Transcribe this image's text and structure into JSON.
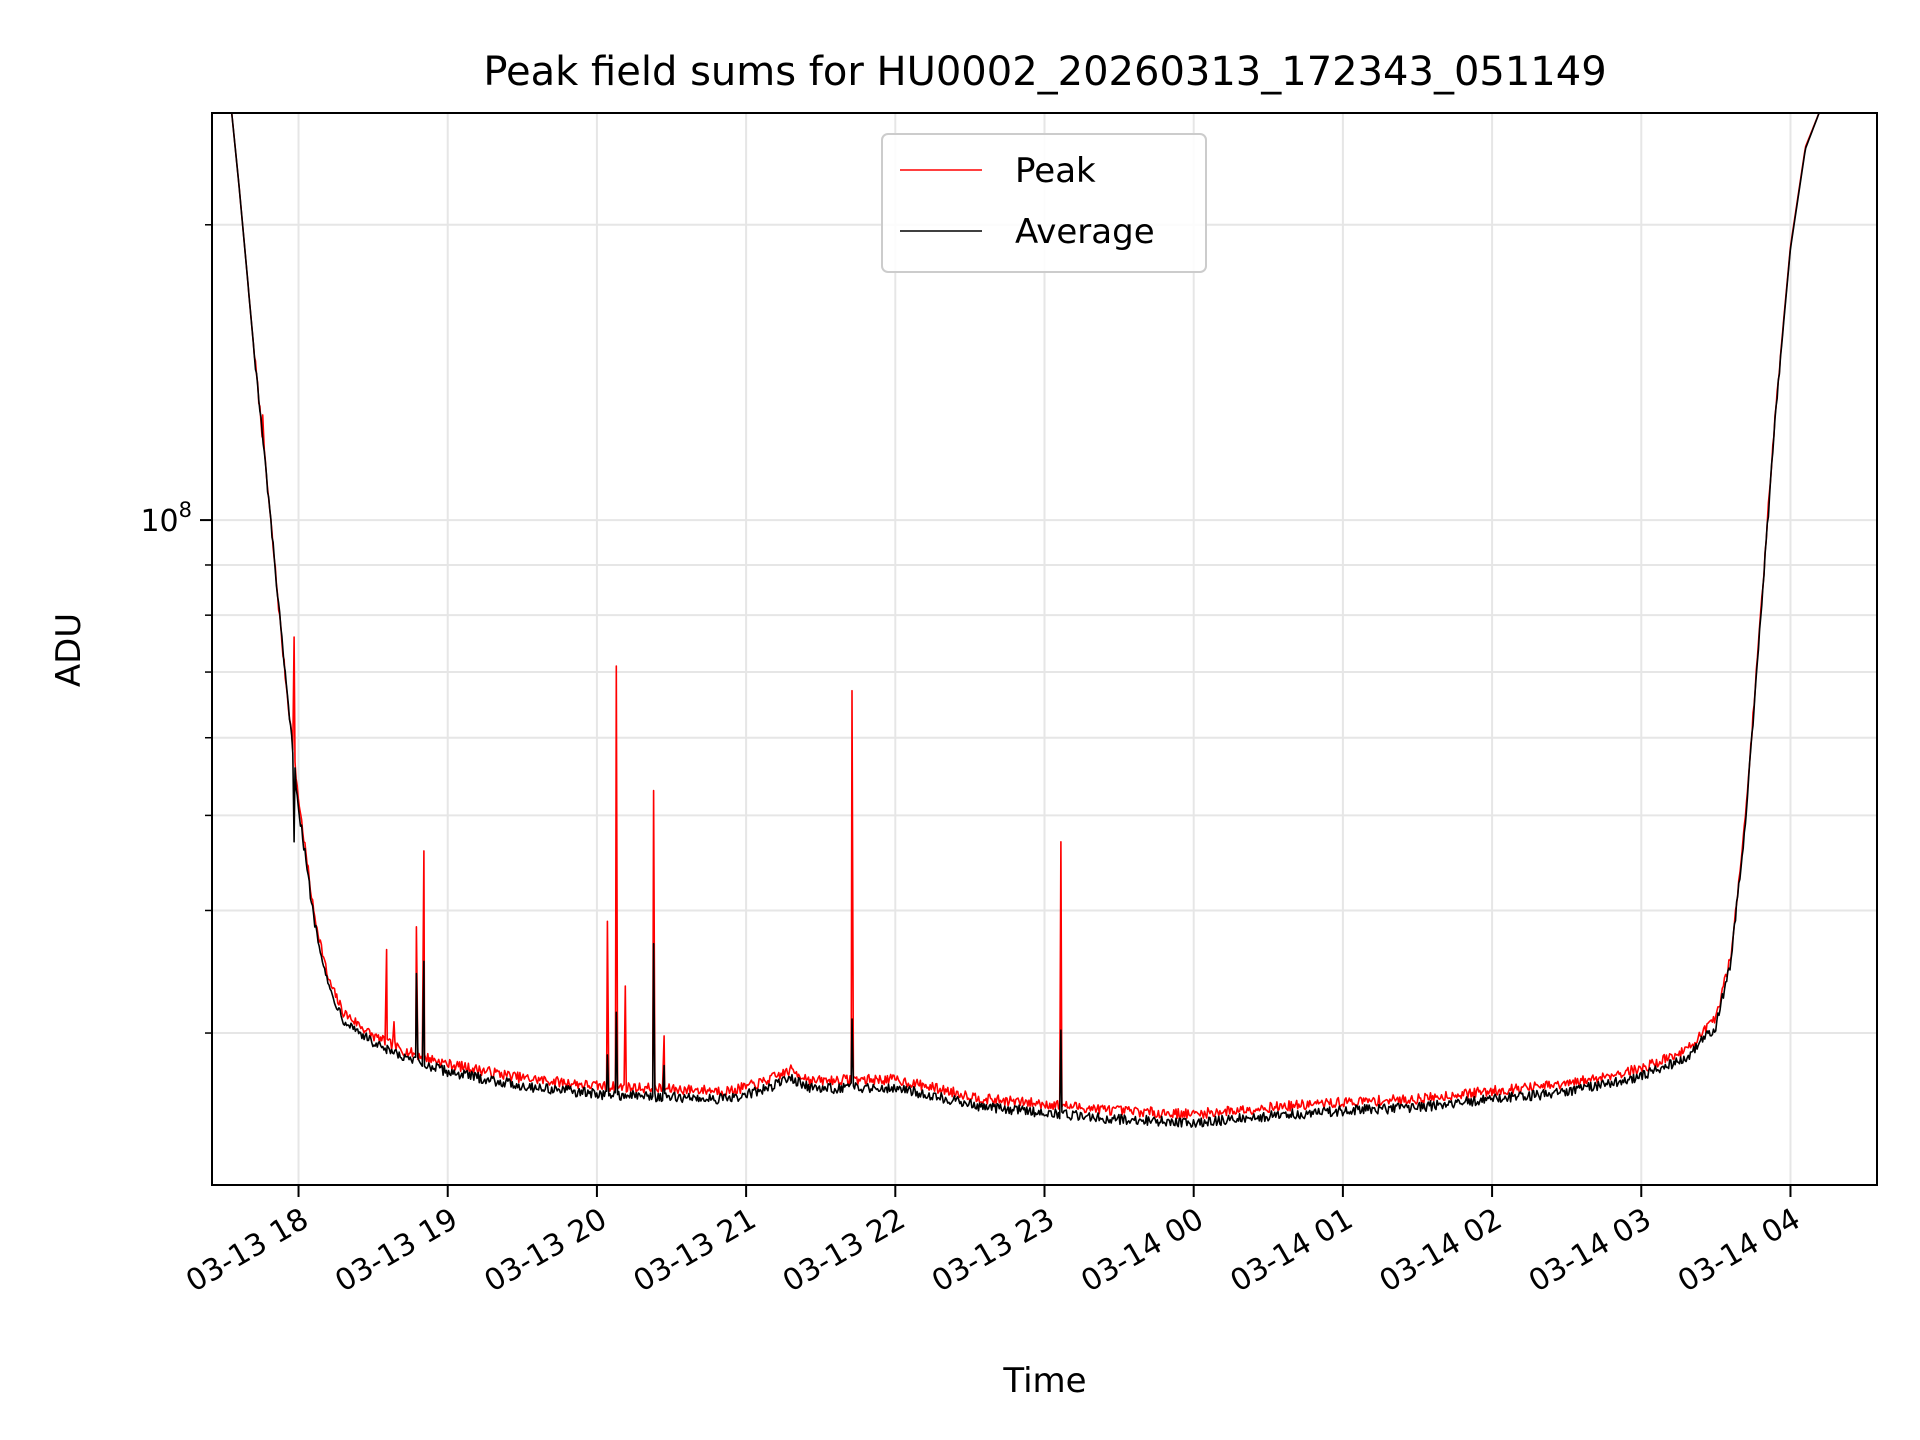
{
  "chart_data": {
    "type": "line",
    "title": "Peak field sums for HU0002_20260313_172343_051149",
    "xlabel": "Time",
    "ylabel": "ADU",
    "yscale": "log",
    "ylim": [
      21000000,
      260000000
    ],
    "xlim": [
      -0.58,
      10.58
    ],
    "grid": true,
    "legend_position": "top-center",
    "x_ticks": [
      {
        "value": 0,
        "label": "03-13 18"
      },
      {
        "value": 1,
        "label": "03-13 19"
      },
      {
        "value": 2,
        "label": "03-13 20"
      },
      {
        "value": 3,
        "label": "03-13 21"
      },
      {
        "value": 4,
        "label": "03-13 22"
      },
      {
        "value": 5,
        "label": "03-13 23"
      },
      {
        "value": 6,
        "label": "03-14 00"
      },
      {
        "value": 7,
        "label": "03-14 01"
      },
      {
        "value": 8,
        "label": "03-14 02"
      },
      {
        "value": 9,
        "label": "03-14 03"
      },
      {
        "value": 10,
        "label": "03-14 04"
      }
    ],
    "y_major_tick": {
      "value": 100000000,
      "base": "10",
      "exponent": "8"
    },
    "y_minor_ticks": [
      30000000,
      40000000,
      50000000,
      60000000,
      70000000,
      80000000,
      90000000,
      200000000
    ],
    "series": [
      {
        "name": "Peak",
        "color": "#ff0000",
        "baseline": [
          [
            -0.45,
            262000000
          ],
          [
            -0.4,
            220000000
          ],
          [
            -0.3,
            150000000
          ],
          [
            -0.2,
            105000000
          ],
          [
            -0.1,
            72000000
          ],
          [
            0.0,
            52000000
          ],
          [
            0.1,
            40000000
          ],
          [
            0.2,
            34000000
          ],
          [
            0.3,
            31500000
          ],
          [
            0.5,
            29800000
          ],
          [
            0.7,
            28800000
          ],
          [
            1.0,
            27900000
          ],
          [
            1.5,
            27000000
          ],
          [
            2.0,
            26500000
          ],
          [
            2.5,
            26300000
          ],
          [
            2.9,
            26200000
          ],
          [
            3.1,
            26700000
          ],
          [
            3.3,
            27500000
          ],
          [
            3.45,
            26800000
          ],
          [
            3.7,
            26900000
          ],
          [
            4.0,
            26900000
          ],
          [
            4.3,
            26300000
          ],
          [
            4.6,
            25700000
          ],
          [
            5.0,
            25400000
          ],
          [
            5.5,
            25000000
          ],
          [
            6.0,
            24800000
          ],
          [
            6.5,
            25200000
          ],
          [
            7.0,
            25500000
          ],
          [
            7.5,
            25700000
          ],
          [
            8.0,
            26200000
          ],
          [
            8.5,
            26600000
          ],
          [
            9.0,
            27600000
          ],
          [
            9.3,
            28800000
          ],
          [
            9.5,
            31000000
          ],
          [
            9.6,
            36000000
          ],
          [
            9.7,
            50000000
          ],
          [
            9.8,
            80000000
          ],
          [
            9.9,
            130000000
          ],
          [
            10.0,
            190000000
          ],
          [
            10.1,
            240000000
          ],
          [
            10.2,
            262000000
          ],
          [
            10.58,
            262000000
          ]
        ],
        "noise": 0.012,
        "spikes": [
          {
            "x": -0.24,
            "y": 128000000
          },
          {
            "x": -0.03,
            "y": 76000000
          },
          {
            "x": 0.59,
            "y": 36500000
          },
          {
            "x": 0.64,
            "y": 30800000
          },
          {
            "x": 0.79,
            "y": 38500000
          },
          {
            "x": 0.84,
            "y": 46000000
          },
          {
            "x": 2.07,
            "y": 39000000
          },
          {
            "x": 2.13,
            "y": 71000000
          },
          {
            "x": 2.19,
            "y": 33500000
          },
          {
            "x": 2.38,
            "y": 53000000
          },
          {
            "x": 2.45,
            "y": 29800000
          },
          {
            "x": 3.71,
            "y": 67000000
          },
          {
            "x": 5.11,
            "y": 47000000
          }
        ]
      },
      {
        "name": "Average",
        "color": "#000000",
        "baseline": [
          [
            -0.45,
            262000000
          ],
          [
            -0.4,
            220000000
          ],
          [
            -0.3,
            150000000
          ],
          [
            -0.2,
            105000000
          ],
          [
            -0.1,
            72000000
          ],
          [
            0.0,
            51000000
          ],
          [
            0.1,
            39500000
          ],
          [
            0.2,
            33500000
          ],
          [
            0.3,
            31000000
          ],
          [
            0.5,
            29300000
          ],
          [
            0.7,
            28300000
          ],
          [
            1.0,
            27400000
          ],
          [
            1.5,
            26500000
          ],
          [
            2.0,
            26000000
          ],
          [
            2.5,
            25800000
          ],
          [
            2.9,
            25700000
          ],
          [
            3.1,
            26200000
          ],
          [
            3.3,
            27000000
          ],
          [
            3.45,
            26300000
          ],
          [
            3.7,
            26400000
          ],
          [
            4.0,
            26400000
          ],
          [
            4.3,
            25800000
          ],
          [
            4.6,
            25200000
          ],
          [
            5.0,
            24900000
          ],
          [
            5.5,
            24500000
          ],
          [
            6.0,
            24300000
          ],
          [
            6.5,
            24700000
          ],
          [
            7.0,
            25000000
          ],
          [
            7.5,
            25200000
          ],
          [
            8.0,
            25700000
          ],
          [
            8.5,
            26100000
          ],
          [
            9.0,
            27100000
          ],
          [
            9.3,
            28300000
          ],
          [
            9.5,
            30500000
          ],
          [
            9.6,
            35500000
          ],
          [
            9.7,
            49500000
          ],
          [
            9.8,
            79000000
          ],
          [
            9.9,
            129000000
          ],
          [
            10.0,
            189000000
          ],
          [
            10.1,
            239000000
          ],
          [
            10.2,
            262000000
          ],
          [
            10.58,
            262000000
          ]
        ],
        "noise": 0.012,
        "spikes": [
          {
            "x": -0.03,
            "y": 47000000
          },
          {
            "x": 0.59,
            "y": 28600000
          },
          {
            "x": 0.79,
            "y": 34500000
          },
          {
            "x": 0.84,
            "y": 35500000
          },
          {
            "x": 2.07,
            "y": 28500000
          },
          {
            "x": 2.13,
            "y": 31500000
          },
          {
            "x": 2.38,
            "y": 37000000
          },
          {
            "x": 2.45,
            "y": 27800000
          },
          {
            "x": 3.71,
            "y": 31000000
          },
          {
            "x": 5.11,
            "y": 30200000
          }
        ]
      }
    ]
  }
}
